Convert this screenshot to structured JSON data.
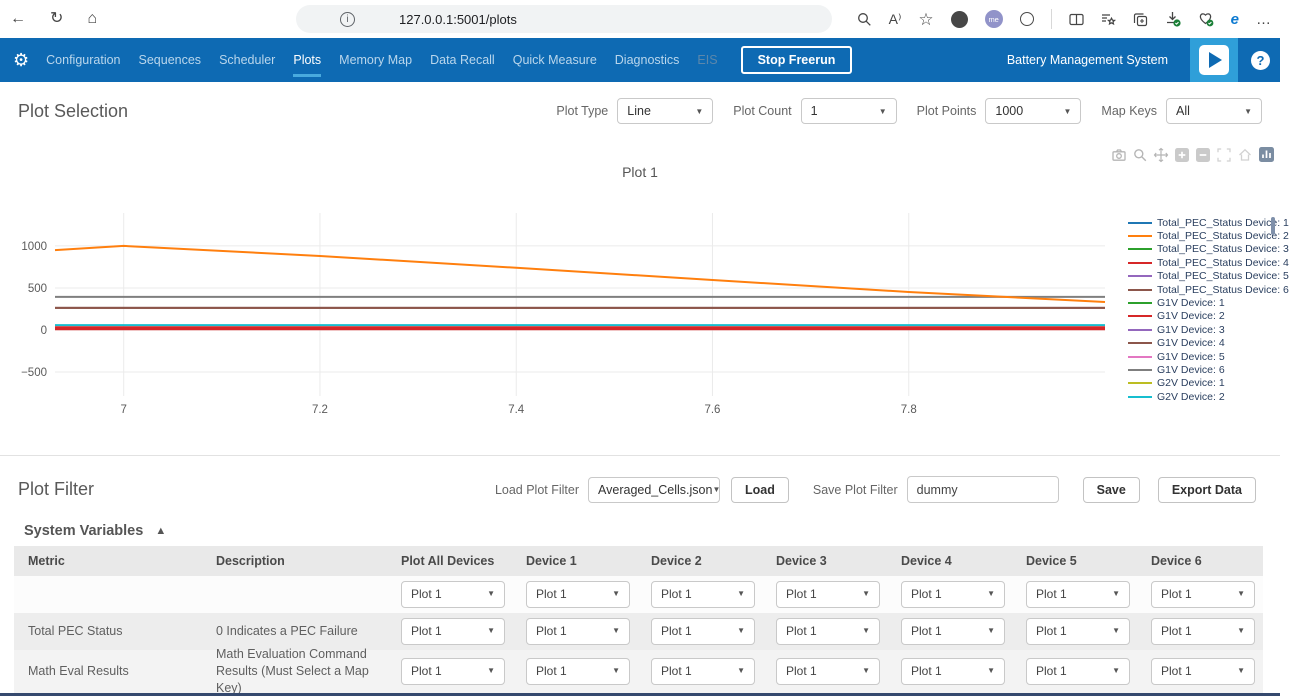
{
  "browser": {
    "url": "127.0.0.1:5001/plots",
    "icons": [
      "back",
      "refresh",
      "home",
      "page-info",
      "zoom",
      "read-aloud",
      "favorites",
      "extension",
      "me-extension",
      "cookie-extension",
      "split-screen",
      "collections",
      "copy-tab",
      "download",
      "browser-essentials",
      "ie-mode",
      "more-menu"
    ],
    "read_aloud_glyph": "A⁾",
    "more_glyph": "…",
    "back_glyph": "←",
    "refresh_glyph": "↻",
    "home_glyph": "⌂",
    "info_glyph": "i",
    "favorites_glyph": "☆",
    "me_glyph": "me"
  },
  "nav": {
    "items": [
      {
        "label": "Configuration",
        "state": "normal"
      },
      {
        "label": "Sequences",
        "state": "normal"
      },
      {
        "label": "Scheduler",
        "state": "normal"
      },
      {
        "label": "Plots",
        "state": "active"
      },
      {
        "label": "Memory Map",
        "state": "normal"
      },
      {
        "label": "Data Recall",
        "state": "normal"
      },
      {
        "label": "Quick Measure",
        "state": "normal"
      },
      {
        "label": "Diagnostics",
        "state": "normal"
      },
      {
        "label": "EIS",
        "state": "disabled"
      }
    ],
    "stop_button": "Stop Freerun",
    "app_title": "Battery Management System",
    "gear_glyph": "⚙",
    "help_glyph": "?"
  },
  "plot_selection": {
    "title": "Plot Selection",
    "controls": [
      {
        "label": "Plot Type",
        "value": "Line"
      },
      {
        "label": "Plot Count",
        "value": "1"
      },
      {
        "label": "Plot Points",
        "value": "1000"
      },
      {
        "label": "Map Keys",
        "value": "All"
      }
    ]
  },
  "chart_data": {
    "type": "line",
    "title": "Plot 1",
    "xlabel": "",
    "ylabel": "",
    "xlim": [
      6.93,
      8.0
    ],
    "ylim": [
      -786,
      1392
    ],
    "xticks": [
      7,
      7.2,
      7.4,
      7.6,
      7.8
    ],
    "yticks": [
      -500,
      0,
      500,
      1000
    ],
    "grid": true,
    "legend_position": "right",
    "draw_order": [
      0,
      2,
      4,
      6,
      8,
      10,
      12,
      13,
      5,
      9,
      11,
      3,
      7,
      1
    ],
    "series": [
      {
        "name": "Total_PEC_Status Device: 1",
        "color": "#1f77b4",
        "width": 1.5,
        "x": [
          6.93,
          8.0
        ],
        "y": [
          10,
          10
        ]
      },
      {
        "name": "Total_PEC_Status Device: 2",
        "color": "#ff7f0e",
        "width": 2,
        "x": [
          6.93,
          7.0,
          7.2,
          7.4,
          7.6,
          7.8,
          8.0
        ],
        "y": [
          950,
          1000,
          880,
          740,
          595,
          452,
          333
        ]
      },
      {
        "name": "Total_PEC_Status Device: 3",
        "color": "#2ca02c",
        "width": 1.5,
        "x": [
          6.93,
          8.0
        ],
        "y": [
          15,
          15
        ]
      },
      {
        "name": "Total_PEC_Status Device: 4",
        "color": "#d62728",
        "width": 4,
        "x": [
          6.93,
          8.0
        ],
        "y": [
          20,
          20
        ]
      },
      {
        "name": "Total_PEC_Status Device: 5",
        "color": "#9467bd",
        "width": 1.5,
        "x": [
          6.93,
          8.0
        ],
        "y": [
          22,
          22
        ]
      },
      {
        "name": "Total_PEC_Status Device: 6",
        "color": "#8c564b",
        "width": 2,
        "x": [
          6.93,
          8.0
        ],
        "y": [
          262,
          262
        ]
      },
      {
        "name": "G1V Device: 1",
        "color": "#2ca02c",
        "width": 1.5,
        "x": [
          6.93,
          8.0
        ],
        "y": [
          25,
          25
        ]
      },
      {
        "name": "G1V Device: 2",
        "color": "#d62728",
        "width": 3,
        "x": [
          6.93,
          8.0
        ],
        "y": [
          20,
          20
        ]
      },
      {
        "name": "G1V Device: 3",
        "color": "#9467bd",
        "width": 1.5,
        "x": [
          6.93,
          8.0
        ],
        "y": [
          30,
          30
        ]
      },
      {
        "name": "G1V Device: 4",
        "color": "#8c564b",
        "width": 2,
        "x": [
          6.93,
          8.0
        ],
        "y": [
          262,
          262
        ]
      },
      {
        "name": "G1V Device: 5",
        "color": "#e377c2",
        "width": 1.5,
        "x": [
          6.93,
          8.0
        ],
        "y": [
          18,
          18
        ]
      },
      {
        "name": "G1V Device: 6",
        "color": "#7f7f7f",
        "width": 2,
        "x": [
          6.93,
          8.0
        ],
        "y": [
          393,
          393
        ]
      },
      {
        "name": "G2V Device: 1",
        "color": "#bcbd22",
        "width": 1.5,
        "x": [
          6.93,
          8.0
        ],
        "y": [
          12,
          12
        ]
      },
      {
        "name": "G2V Device: 2",
        "color": "#17becf",
        "width": 2,
        "x": [
          6.93,
          8.0
        ],
        "y": [
          58,
          58
        ]
      }
    ]
  },
  "plot_filter": {
    "title": "Plot Filter",
    "load_label": "Load Plot Filter",
    "load_value": "Averaged_Cells.json",
    "load_button": "Load",
    "save_label": "Save Plot Filter",
    "save_value": "dummy",
    "save_button": "Save",
    "export_button": "Export Data",
    "section_title": "System Variables",
    "collapse_glyph": "▲",
    "table": {
      "headers": [
        "Metric",
        "Description",
        "Plot All Devices",
        "Device 1",
        "Device 2",
        "Device 3",
        "Device 4",
        "Device 5",
        "Device 6"
      ],
      "dropdown_value": "Plot 1",
      "rows": [
        {
          "metric": "",
          "description": ""
        },
        {
          "metric": "Total PEC Status",
          "description": "0 Indicates a PEC Failure"
        },
        {
          "metric": "Math Eval Results",
          "description": "Math Evaluation Command Results (Must Select a Map Key)"
        }
      ]
    }
  },
  "colors": {
    "nav_blue": "#0e6ab3",
    "nav_active_underline": "#49aade",
    "play_box": "#2f9fd9",
    "table_header_bg": "#e9e9e9",
    "bottom_strip": "#35496e",
    "download_check_green": "#1a7f37"
  }
}
